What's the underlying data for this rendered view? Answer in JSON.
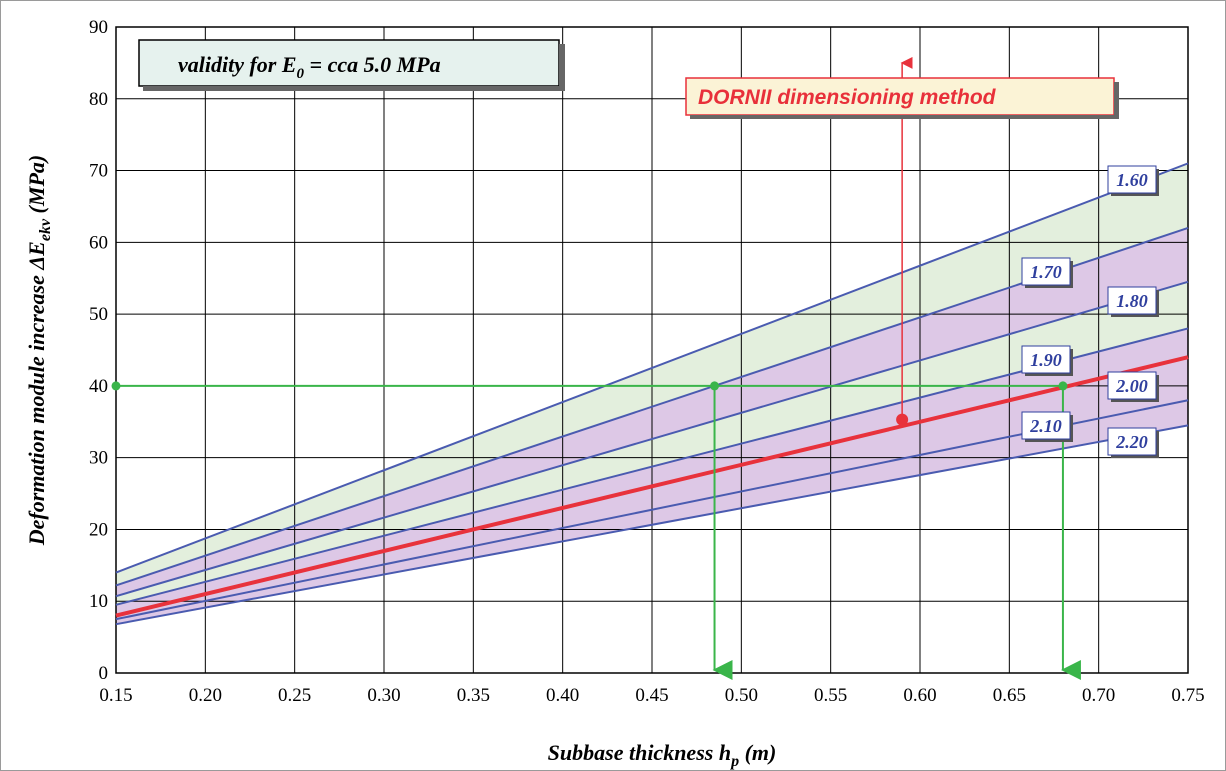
{
  "chart_data": {
    "type": "line",
    "title": "",
    "validity_note": {
      "prefix": "validity for E",
      "subscript": "0",
      "suffix": " = cca 5.0 MPa"
    },
    "method_label": "DORNII dimensioning method",
    "xlabel": {
      "main": "Subbase thickness h",
      "subscript": "p",
      "suffix": " (m)"
    },
    "ylabel": {
      "main": "Deformation module increase  ΔE",
      "subscript": "ekv",
      "suffix": " (MPa)"
    },
    "xlim": [
      0.15,
      0.75
    ],
    "ylim": [
      0,
      90
    ],
    "x_ticks": [
      "0.15",
      "0.20",
      "0.25",
      "0.30",
      "0.35",
      "0.40",
      "0.45",
      "0.50",
      "0.55",
      "0.60",
      "0.65",
      "0.70",
      "0.75"
    ],
    "y_ticks": [
      "0",
      "10",
      "20",
      "30",
      "40",
      "50",
      "60",
      "70",
      "80",
      "90"
    ],
    "grid": true,
    "series": [
      {
        "name": "1.60",
        "x": [
          0.15,
          0.75
        ],
        "y": [
          14.0,
          71.0
        ]
      },
      {
        "name": "1.70",
        "x": [
          0.15,
          0.75
        ],
        "y": [
          12.2,
          62.0
        ]
      },
      {
        "name": "1.80",
        "x": [
          0.15,
          0.75
        ],
        "y": [
          10.7,
          54.5
        ]
      },
      {
        "name": "1.90",
        "x": [
          0.15,
          0.75
        ],
        "y": [
          9.5,
          48.0
        ]
      },
      {
        "name": "2.00",
        "x": [
          0.15,
          0.75
        ],
        "y": [
          8.0,
          44.0
        ]
      },
      {
        "name": "2.10",
        "x": [
          0.15,
          0.75
        ],
        "y": [
          7.5,
          38.0
        ]
      },
      {
        "name": "2.20",
        "x": [
          0.15,
          0.75
        ],
        "y": [
          6.8,
          34.5
        ]
      }
    ],
    "bands": [
      {
        "upper": "1.60",
        "lower": "1.70",
        "color": "#e3efdd"
      },
      {
        "upper": "1.70",
        "lower": "1.80",
        "color": "#ddc8e6"
      },
      {
        "upper": "1.80",
        "lower": "1.90",
        "color": "#e3efdd"
      },
      {
        "upper": "1.90",
        "lower": "2.10",
        "color": "#ddc8e6"
      },
      {
        "upper": "2.10",
        "lower": "2.20",
        "color": "#ddc8e6"
      }
    ],
    "highlight_series": "2.00",
    "annotations": {
      "horizontal_line": {
        "y": 40,
        "x_from": 0.15,
        "x_to": 0.68
      },
      "green_points": [
        {
          "x": 0.15,
          "y": 40
        },
        {
          "x": 0.485,
          "y": 40
        },
        {
          "x": 0.68,
          "y": 40
        }
      ],
      "drop_arrows": [
        {
          "x": 0.485,
          "y_from": 40,
          "y_to": 0
        },
        {
          "x": 0.68,
          "y_from": 40,
          "y_to": 0
        }
      ],
      "method_point": {
        "x": 0.59,
        "y": 35.3
      },
      "method_arrow_to_y": 85
    },
    "colors": {
      "series_line": "#4a5bb0",
      "highlight_line": "#e8323c",
      "annotation_green": "#3ab54a",
      "label_text": "#2f3f9e",
      "validity_box_fill": "#e6f2ee",
      "method_box_fill": "#fbf3d6"
    }
  }
}
